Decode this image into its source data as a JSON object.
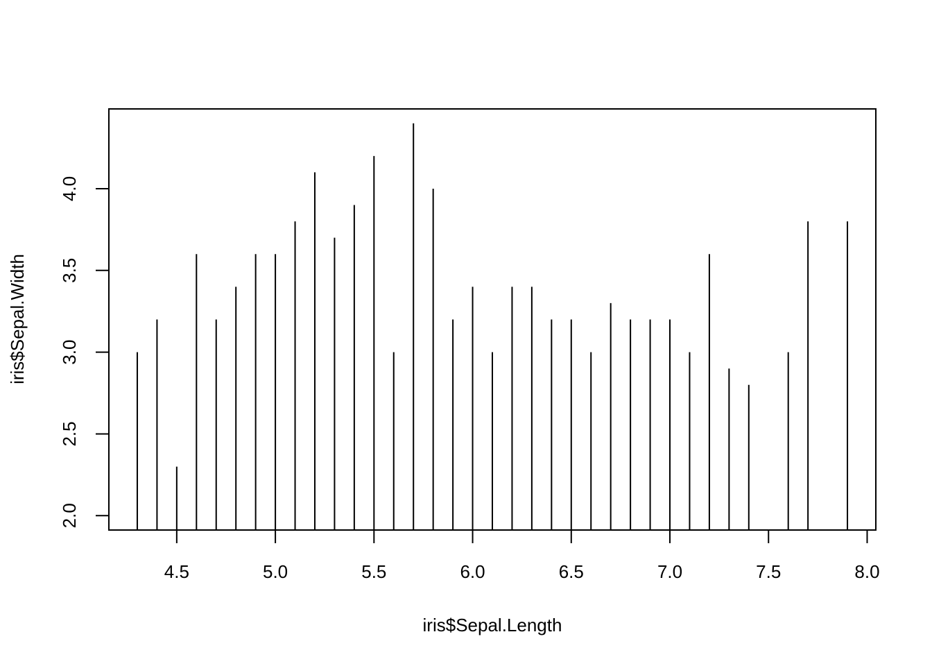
{
  "chart_data": {
    "type": "histogram-spikes",
    "xlabel": "iris$Sepal.Length",
    "ylabel": "iris$Sepal.Width",
    "xlim": [
      4.156,
      8.044
    ],
    "ylim": [
      1.912,
      4.488
    ],
    "xticks": [
      "4.5",
      "5.0",
      "5.5",
      "6.0",
      "6.5",
      "7.0",
      "7.5",
      "8.0"
    ],
    "yticks": [
      "2.0",
      "2.5",
      "3.0",
      "3.5",
      "4.0"
    ],
    "x": [
      4.3,
      4.4,
      4.5,
      4.6,
      4.7,
      4.8,
      4.9,
      5.0,
      5.1,
      5.2,
      5.3,
      5.4,
      5.5,
      5.6,
      5.7,
      5.8,
      5.9,
      6.0,
      6.1,
      6.2,
      6.3,
      6.4,
      6.5,
      6.6,
      6.7,
      6.8,
      6.9,
      7.0,
      7.1,
      7.2,
      7.3,
      7.4,
      7.6,
      7.7,
      7.9
    ],
    "y": [
      3.0,
      3.2,
      2.3,
      3.6,
      3.2,
      3.4,
      3.6,
      3.6,
      3.8,
      4.1,
      3.7,
      3.9,
      4.2,
      3.0,
      4.4,
      4.0,
      3.2,
      3.4,
      3.0,
      3.4,
      3.4,
      3.2,
      3.2,
      3.0,
      3.3,
      3.2,
      3.2,
      3.2,
      3.0,
      3.6,
      2.9,
      2.8,
      3.0,
      3.8,
      3.8
    ]
  }
}
